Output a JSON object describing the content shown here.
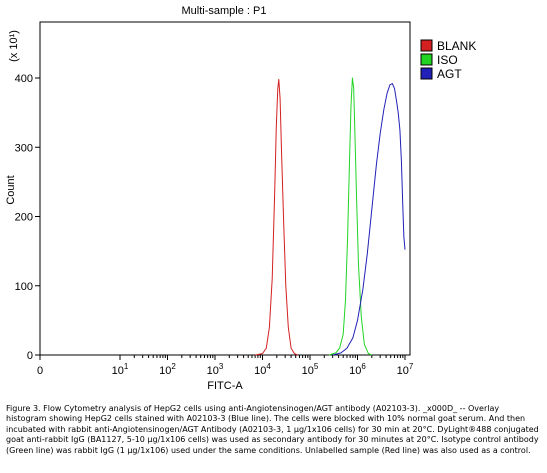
{
  "chart_data": {
    "type": "line",
    "title": "Multi-sample : P1",
    "xlabel": "FITC-A",
    "ylabel": "Count",
    "y_multiplier": "(x 10¹)",
    "x_scale": "log",
    "xlim": [
      0,
      10000000
    ],
    "ylim": [
      0,
      470
    ],
    "x_ticks": [
      {
        "label": "0",
        "exp": ""
      },
      {
        "label": "10",
        "exp": "1"
      },
      {
        "label": "10",
        "exp": "2"
      },
      {
        "label": "10",
        "exp": "3"
      },
      {
        "label": "10",
        "exp": "4"
      },
      {
        "label": "10",
        "exp": "5"
      },
      {
        "label": "10",
        "exp": "6"
      },
      {
        "label": "10",
        "exp": "7"
      }
    ],
    "y_ticks": [
      "0",
      "100",
      "200",
      "300",
      "400"
    ],
    "y_tick_values": [
      0,
      100,
      200,
      300,
      400
    ],
    "legend_position": "top-right outside",
    "grid": false,
    "series": [
      {
        "name": "BLANK",
        "color": "#d42020",
        "points": [
          [
            7000,
            0
          ],
          [
            10000,
            2
          ],
          [
            12000,
            10
          ],
          [
            14000,
            40
          ],
          [
            16000,
            110
          ],
          [
            18000,
            230
          ],
          [
            19500,
            330
          ],
          [
            21000,
            385
          ],
          [
            22000,
            398
          ],
          [
            23500,
            370
          ],
          [
            25000,
            300
          ],
          [
            28000,
            190
          ],
          [
            31000,
            100
          ],
          [
            35000,
            40
          ],
          [
            40000,
            10
          ],
          [
            47000,
            2
          ],
          [
            55000,
            0
          ]
        ]
      },
      {
        "name": "ISO",
        "color": "#22d422",
        "points": [
          [
            250000,
            0
          ],
          [
            350000,
            3
          ],
          [
            420000,
            10
          ],
          [
            500000,
            30
          ],
          [
            560000,
            80
          ],
          [
            620000,
            170
          ],
          [
            680000,
            280
          ],
          [
            730000,
            360
          ],
          [
            780000,
            400
          ],
          [
            830000,
            385
          ],
          [
            880000,
            320
          ],
          [
            960000,
            220
          ],
          [
            1050000,
            130
          ],
          [
            1200000,
            55
          ],
          [
            1400000,
            15
          ],
          [
            1700000,
            2
          ],
          [
            2000000,
            0
          ]
        ]
      },
      {
        "name": "AGT",
        "color": "#2020b8",
        "points": [
          [
            300000,
            0
          ],
          [
            450000,
            3
          ],
          [
            600000,
            10
          ],
          [
            800000,
            25
          ],
          [
            1000000,
            50
          ],
          [
            1300000,
            95
          ],
          [
            1600000,
            145
          ],
          [
            2000000,
            210
          ],
          [
            2500000,
            275
          ],
          [
            3000000,
            320
          ],
          [
            3600000,
            355
          ],
          [
            4200000,
            378
          ],
          [
            4800000,
            390
          ],
          [
            5400000,
            392
          ],
          [
            6000000,
            385
          ],
          [
            6600000,
            368
          ],
          [
            7200000,
            350
          ],
          [
            7800000,
            325
          ],
          [
            8400000,
            280
          ],
          [
            9000000,
            215
          ],
          [
            9500000,
            170
          ],
          [
            10000000,
            152
          ]
        ]
      }
    ]
  },
  "caption": "Figure 3. Flow Cytometry analysis of HepG2 cells using anti-Angiotensinogen/AGT antibody (A02103-3). _x000D_ -- Overlay histogram showing HepG2 cells stained with A02103-3 (Blue line). The cells were blocked with 10% normal goat serum. And then incubated with rabbit anti-Angiotensinogen/AGT Antibody (A02103-3, 1 µg/1x106 cells) for 30 min at 20°C. DyLight®488 conjugated goat anti-rabbit IgG (BA1127, 5-10 µg/1x106 cells) was used as secondary antibody for 30 minutes at 20°C. Isotype control antibody (Green line) was rabbit IgG (1 µg/1x106) used under the same conditions. Unlabelled sample (Red line) was also used as a control."
}
